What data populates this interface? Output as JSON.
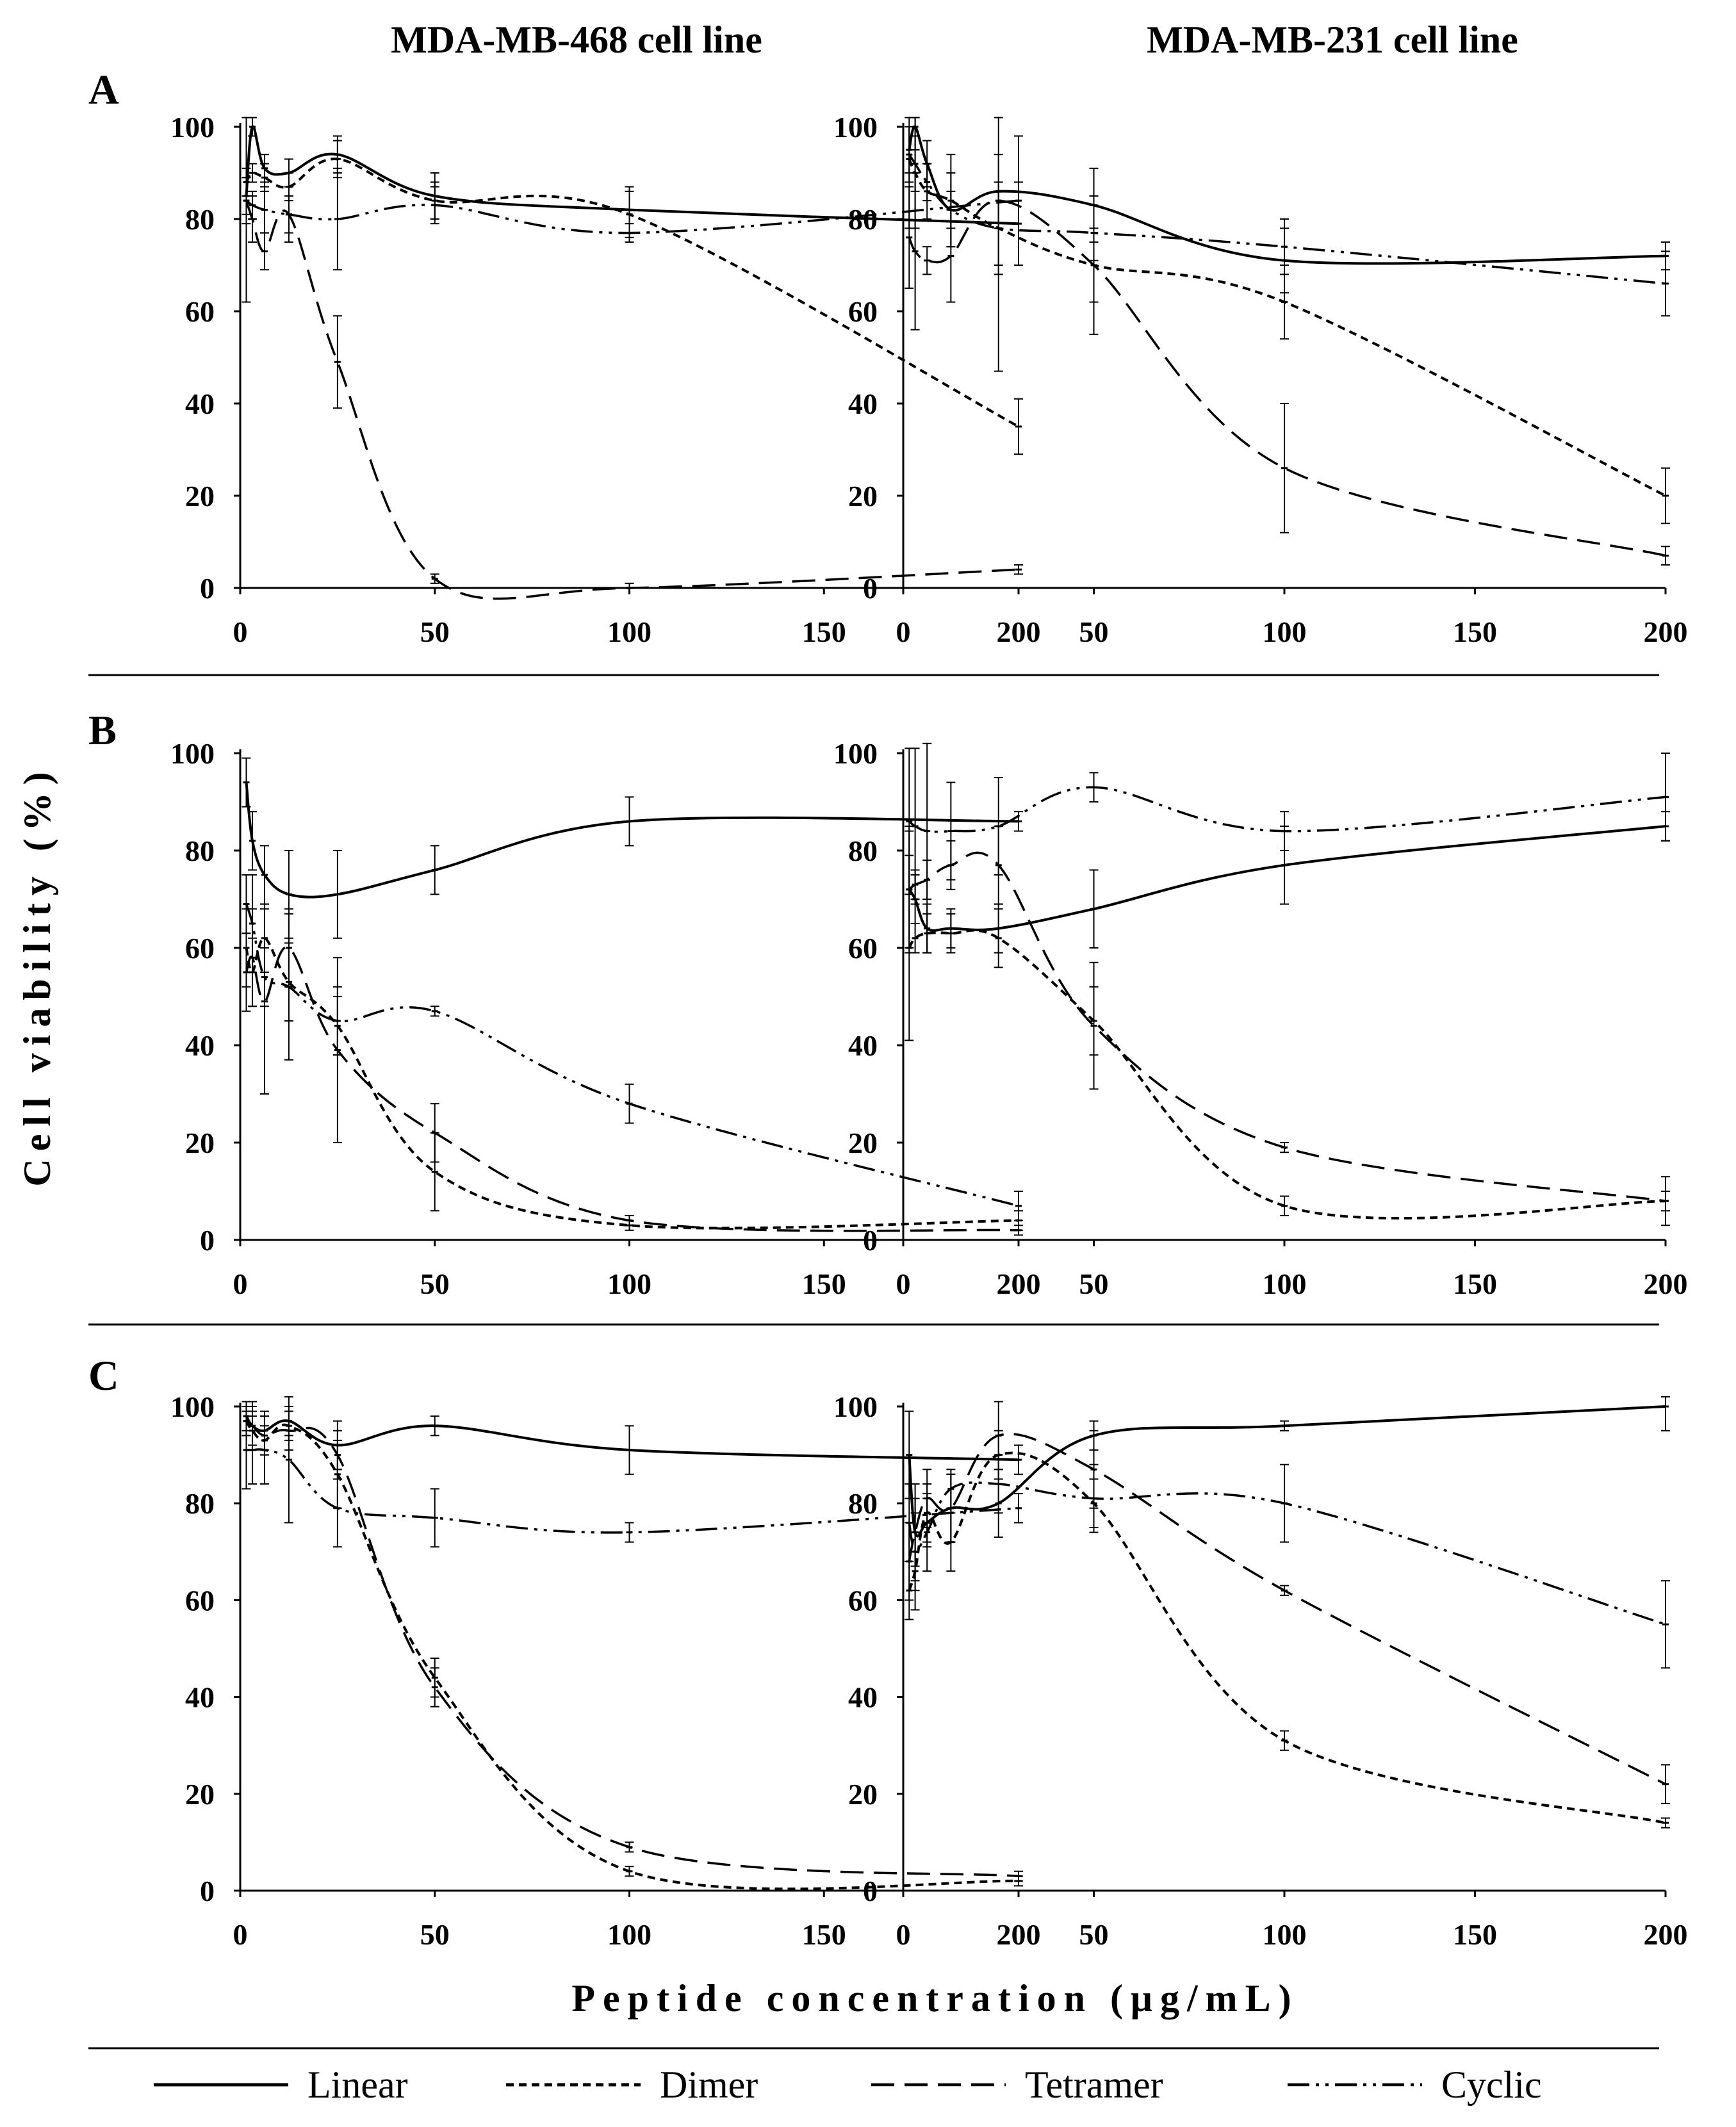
{
  "chart_data": {
    "type": "line",
    "column_titles": [
      "MDA-MB-468 cell line",
      "MDA-MB-231 cell line"
    ],
    "row_labels": [
      "A",
      "B",
      "C"
    ],
    "ylabel": "Cell viability (%)",
    "xlabel": "Peptide concentration (μg/mL)",
    "x_ticks": [
      "0",
      "50",
      "100",
      "150",
      "200"
    ],
    "y_ticks": [
      "0",
      "20",
      "40",
      "60",
      "80",
      "100"
    ],
    "xlim": [
      0,
      200
    ],
    "ylim": [
      0,
      100
    ],
    "x": [
      1.56,
      3.125,
      6.25,
      12.5,
      25,
      50,
      100,
      200
    ],
    "legend": [
      {
        "name": "Linear",
        "dash": "solid"
      },
      {
        "name": "Dimer",
        "dash": "short-dash"
      },
      {
        "name": "Tetramer",
        "dash": "long-dash"
      },
      {
        "name": "Cyclic",
        "dash": "dash-dot-dot"
      }
    ],
    "panels": [
      {
        "row": "A",
        "col": 0,
        "series": [
          {
            "name": "Linear",
            "values": [
              85,
              100,
              91,
              90,
              94,
              85,
              82,
              79
            ],
            "err": [
              4,
              2,
              3,
              3,
              4,
              5,
              5,
              9
            ]
          },
          {
            "name": "Dimer",
            "values": [
              88,
              90,
              89,
              87,
              93,
              84,
              81,
              35
            ],
            "err": [
              3,
              2,
              3,
              3,
              4,
              4,
              5,
              6
            ]
          },
          {
            "name": "Tetramer",
            "values": [
              84,
              80,
              73,
              81,
              49,
              2,
              0,
              4
            ],
            "err": [
              22,
              5,
              4,
              6,
              10,
              1,
              1,
              1
            ]
          },
          {
            "name": "Cyclic",
            "values": [
              84,
              83,
              82,
              81,
              80,
              83,
              77,
              84
            ],
            "err": [
              5,
              3,
              5,
              4,
              11,
              4,
              2,
              14
            ]
          }
        ]
      },
      {
        "row": "A",
        "col": 1,
        "series": [
          {
            "name": "Linear",
            "values": [
              95,
              100,
              92,
              82,
              86,
              83,
              71,
              72
            ],
            "err": [
              5,
              5,
              5,
              8,
              8,
              8,
              7,
              3
            ]
          },
          {
            "name": "Dimer",
            "values": [
              93,
              90,
              86,
              84,
              78,
              70,
              62,
              20
            ],
            "err": [
              15,
              12,
              6,
              10,
              10,
              8,
              8,
              6
            ]
          },
          {
            "name": "Tetramer",
            "values": [
              76,
              73,
              71,
              72,
              84,
              70,
              26,
              7
            ],
            "err": [
              11,
              17,
              3,
              10,
              37,
              15,
              14,
              2
            ]
          },
          {
            "name": "Cyclic",
            "values": [
              94,
              92,
              88,
              82,
              78,
              77,
              74,
              66
            ],
            "err": [
              6,
              6,
              4,
              4,
              8,
              6,
              6,
              7
            ]
          }
        ]
      },
      {
        "row": "B",
        "col": 0,
        "series": [
          {
            "name": "Linear",
            "values": [
              94,
              82,
              75,
              71,
              71,
              76,
              86,
              86
            ],
            "err": [
              5,
              6,
              6,
              9,
              9,
              5,
              5,
              2
            ]
          },
          {
            "name": "Dimer",
            "values": [
              60,
              55,
              62,
              53,
              44,
              14,
              3,
              4
            ],
            "err": [
              8,
              7,
              7,
              8,
              6,
              8,
              1,
              2
            ]
          },
          {
            "name": "Tetramer",
            "values": [
              55,
              58,
              49,
              60,
              39,
              22,
              4,
              2
            ],
            "err": [
              8,
              10,
              19,
              8,
              19,
              6,
              1,
              1
            ]
          },
          {
            "name": "Cyclic",
            "values": [
              69,
              65,
              54,
              52,
              45,
              47,
              28,
              7
            ],
            "err": [
              6,
              10,
              6,
              15,
              7,
              1,
              4,
              3
            ]
          }
        ]
      },
      {
        "row": "B",
        "col": 1,
        "series": [
          {
            "name": "Linear",
            "values": [
              72,
              70,
              64,
              64,
              64,
              68,
              77,
              85
            ],
            "err": [
              13,
              5,
              5,
              4,
              5,
              8,
              8,
              3
            ]
          },
          {
            "name": "Dimer",
            "values": [
              60,
              62,
              63,
              63,
              62,
              45,
              7,
              8
            ],
            "err": [
              19,
              3,
              4,
              4,
              6,
              7,
              2,
              5
            ]
          },
          {
            "name": "Tetramer",
            "values": [
              72,
              73,
              74,
              77,
              77,
              44,
              19,
              8
            ],
            "err": [
              12,
              3,
              4,
              5,
              8,
              13,
              1,
              2
            ]
          },
          {
            "name": "Cyclic",
            "values": [
              86,
              85,
              84,
              84,
              85,
              93,
              84,
              91
            ],
            "err": [
              15,
              16,
              25,
              10,
              10,
              3,
              4,
              9
            ]
          }
        ]
      },
      {
        "row": "C",
        "col": 0,
        "series": [
          {
            "name": "Linear",
            "values": [
              98,
              96,
              95,
              97,
              92,
              96,
              91,
              89
            ],
            "err": [
              3,
              5,
              4,
              3,
              5,
              2,
              5,
              3
            ]
          },
          {
            "name": "Dimer",
            "values": [
              97,
              95,
              93,
              96,
              86,
              44,
              4,
              2
            ],
            "err": [
              3,
              4,
              3,
              3,
              7,
              4,
              1,
              1
            ]
          },
          {
            "name": "Tetramer",
            "values": [
              97,
              96,
              94,
              95,
              90,
              42,
              9,
              3
            ],
            "err": [
              3,
              4,
              4,
              4,
              5,
              4,
              1,
              1
            ]
          },
          {
            "name": "Cyclic",
            "values": [
              91,
              91,
              91,
              89,
              79,
              77,
              74,
              79
            ],
            "err": [
              8,
              7,
              7,
              13,
              8,
              6,
              2,
              3
            ]
          }
        ]
      },
      {
        "row": "C",
        "col": 1,
        "series": [
          {
            "name": "Linear",
            "values": [
              90,
              74,
              76,
              79,
              80,
              94,
              96,
              100
            ],
            "err": [
              9,
              7,
              5,
              7,
              7,
              3,
              1,
              5
            ]
          },
          {
            "name": "Dimer",
            "values": [
              62,
              66,
              78,
              72,
              90,
              80,
              31,
              14
            ],
            "err": [
              6,
              8,
              6,
              6,
              5,
              5,
              2,
              1
            ]
          },
          {
            "name": "Tetramer",
            "values": [
              68,
              74,
              81,
              79,
              94,
              87,
              62,
              22
            ],
            "err": [
              8,
              10,
              6,
              7,
              7,
              8,
              1,
              4
            ]
          },
          {
            "name": "Cyclic",
            "values": [
              76,
              70,
              74,
              83,
              84,
              81,
              80,
              55
            ],
            "err": [
              8,
              8,
              8,
              4,
              6,
              7,
              8,
              9
            ]
          }
        ]
      }
    ]
  }
}
